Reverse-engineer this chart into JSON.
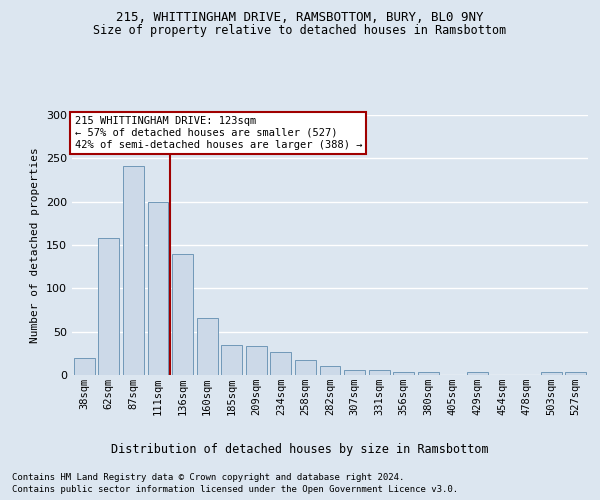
{
  "title1": "215, WHITTINGHAM DRIVE, RAMSBOTTOM, BURY, BL0 9NY",
  "title2": "Size of property relative to detached houses in Ramsbottom",
  "xlabel": "Distribution of detached houses by size in Ramsbottom",
  "ylabel": "Number of detached properties",
  "categories": [
    "38sqm",
    "62sqm",
    "87sqm",
    "111sqm",
    "136sqm",
    "160sqm",
    "185sqm",
    "209sqm",
    "234sqm",
    "258sqm",
    "282sqm",
    "307sqm",
    "331sqm",
    "356sqm",
    "380sqm",
    "405sqm",
    "429sqm",
    "454sqm",
    "478sqm",
    "503sqm",
    "527sqm"
  ],
  "values": [
    20,
    158,
    241,
    200,
    140,
    66,
    35,
    33,
    26,
    17,
    10,
    6,
    6,
    3,
    4,
    0,
    3,
    0,
    0,
    3,
    3
  ],
  "bar_color": "#ccd9e8",
  "bar_edge_color": "#7098b8",
  "vline_x": 3.5,
  "vline_color": "#a00000",
  "annotation_text": "215 WHITTINGHAM DRIVE: 123sqm\n← 57% of detached houses are smaller (527)\n42% of semi-detached houses are larger (388) →",
  "annotation_box_color": "#ffffff",
  "annotation_box_edge": "#a00000",
  "ylim": [
    0,
    300
  ],
  "yticks": [
    0,
    50,
    100,
    150,
    200,
    250,
    300
  ],
  "footer1": "Contains HM Land Registry data © Crown copyright and database right 2024.",
  "footer2": "Contains public sector information licensed under the Open Government Licence v3.0.",
  "bg_color": "#dce6f0",
  "plot_bg_color": "#dce6f0"
}
